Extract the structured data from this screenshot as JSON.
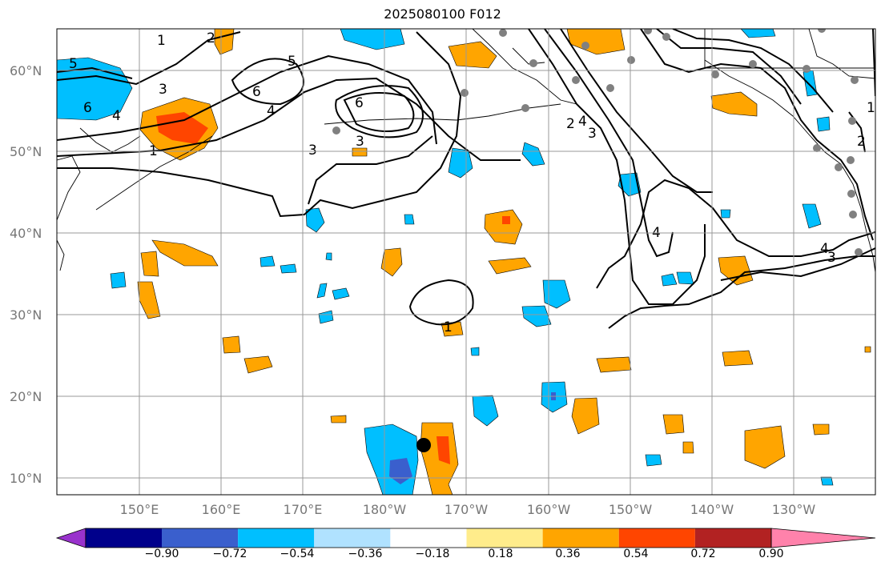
{
  "title": "2025080100 F012",
  "lat_labels": [
    "60°N",
    "50°N",
    "40°N",
    "30°N",
    "20°N",
    "10°N"
  ],
  "lon_labels": [
    "150°E",
    "160°E",
    "170°E",
    "180°W",
    "170°W",
    "160°W",
    "150°W",
    "140°W",
    "130°W"
  ],
  "colorbar": {
    "ticks": [
      "−0.90",
      "−0.72",
      "−0.54",
      "−0.36",
      "−0.18",
      "0.18",
      "0.36",
      "0.54",
      "0.72",
      "0.90"
    ],
    "colors": [
      "#9932CC",
      "#00008B",
      "#3A5FCD",
      "#00BFFF",
      "#B0E2FF",
      "#FFFFFF",
      "#FFEC8B",
      "#FFA500",
      "#FF4500",
      "#B22222",
      "#FF82AB"
    ]
  },
  "contour_labels": [
    "1",
    "2",
    "3",
    "4",
    "5",
    "6",
    "1",
    "3",
    "4",
    "5",
    "6",
    "2",
    "3",
    "6",
    "4",
    "3",
    "2",
    "1",
    "4",
    "3",
    "4",
    "1"
  ],
  "colors": {
    "positive": "#FFA500",
    "strong_positive": "#FF4500",
    "negative": "#00BFFF",
    "strong_negative": "#3A5FCD"
  }
}
